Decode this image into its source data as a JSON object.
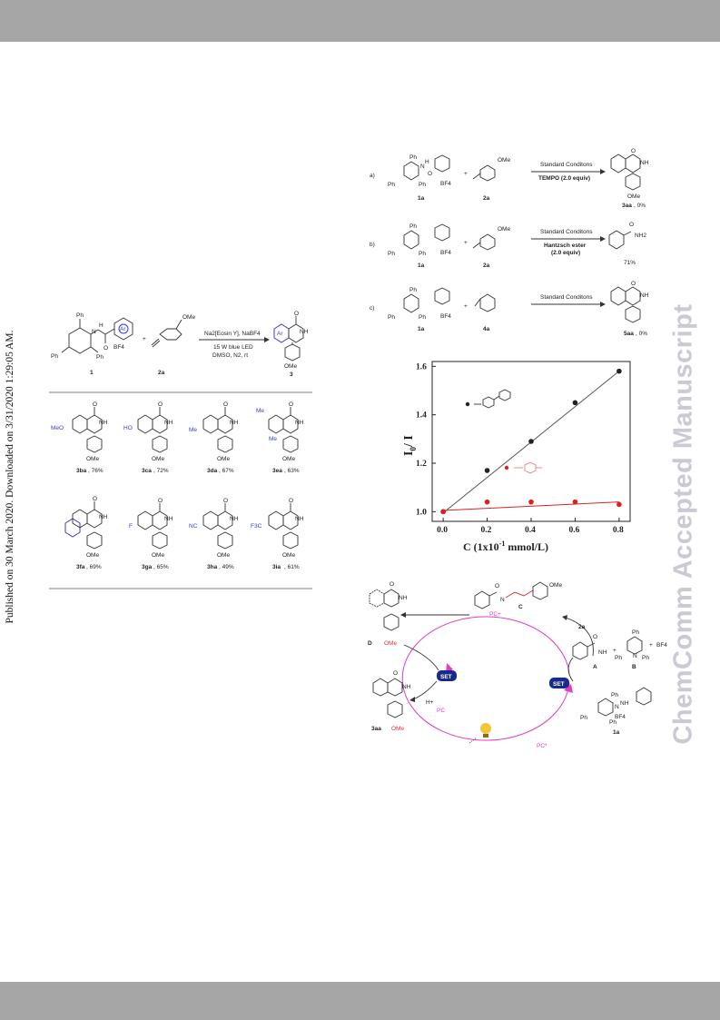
{
  "margin_note": "Published on 30 March 2020. Downloaded on 3/31/2020 1:29:05 AM.",
  "watermark": "ChemComm Accepted Manuscript",
  "scheme_left": {
    "conditions": [
      "Na2[Eosin Y], NaBF4",
      "15 W blue LED",
      "DMSO, N2, rt"
    ],
    "compound_labels": [
      "1",
      "2a",
      "3"
    ],
    "substituent_labels": [
      "Ph",
      "Ph",
      "Ph",
      "BF4",
      "Ar",
      "Ar",
      "OMe",
      "OMe",
      "N",
      "H",
      "O",
      "NH"
    ],
    "products": [
      {
        "label": "3ba",
        "yield": ", 76%",
        "substituent": "MeO"
      },
      {
        "label": "3ca",
        "yield": ", 72%",
        "substituent": "HO"
      },
      {
        "label": "3da",
        "yield": ", 67%",
        "substituent": "Me"
      },
      {
        "label": "3ea",
        "yield": ", 63%",
        "substituent": "Me"
      },
      {
        "label": "3fa",
        "yield": ", 69%",
        "substituent": ""
      },
      {
        "label": "3ga",
        "yield": ", 65%",
        "substituent": "F"
      },
      {
        "label": "3ha",
        "yield": ", 49%",
        "substituent": "NC"
      },
      {
        "label": "3ia",
        "yield": ", 61%",
        "substituent": "F3C"
      }
    ],
    "extra_labels": [
      "Me",
      "OMe",
      "NH",
      "O"
    ]
  },
  "control_experiments": [
    {
      "tag": "a)",
      "above": "Standard Conditons",
      "below": "TEMPO (2.0 equiv)",
      "reagent_labels": [
        "1a",
        "2a"
      ],
      "product": "3aa",
      "product_yield": ", 0%",
      "product_sub": "OMe"
    },
    {
      "tag": "b)",
      "above": "Standard Conditons",
      "below": "Hantzsch ester",
      "below2": "(2.0 equiv)",
      "reagent_labels": [
        "1a",
        "2a"
      ],
      "product_yield": "71%",
      "product_sub": "NH2"
    },
    {
      "tag": "c)",
      "above": "Standard Conditons",
      "below": "",
      "reagent_labels": [
        "1a",
        "4a"
      ],
      "product": "5aa",
      "product_yield": ", 0%"
    }
  ],
  "chem_text": {
    "ph": "Ph",
    "bf4": "BF4",
    "ome": "OMe",
    "nh": "NH",
    "h": "H",
    "n": "N",
    "o": "O",
    "plus": "+"
  },
  "chart_data": {
    "type": "scatter",
    "xlabel": "C (1x10",
    "xlabel_sup": "-1",
    "xlabel_tail": " mmol/L)",
    "ylabel": "I",
    "ylabel_sub": "0",
    "ylabel_tail": "/ I",
    "xlim": [
      0.0,
      0.8
    ],
    "ylim": [
      0.96,
      1.62
    ],
    "x_ticks": [
      "0.0",
      "0.2",
      "0.4",
      "0.6",
      "0.8"
    ],
    "y_ticks": [
      "1.0",
      "1.2",
      "1.4",
      "1.6"
    ],
    "series": [
      {
        "color": "#222222",
        "x": [
          0.0,
          0.2,
          0.4,
          0.6,
          0.8
        ],
        "y": [
          1.0,
          1.17,
          1.29,
          1.45,
          1.58
        ],
        "fit": [
          [
            0.0,
            0.995
          ],
          [
            0.8,
            1.58
          ]
        ]
      },
      {
        "color": "#e02020",
        "x": [
          0.0,
          0.2,
          0.4,
          0.6,
          0.8
        ],
        "y": [
          1.0,
          1.04,
          1.04,
          1.04,
          1.03
        ],
        "fit": [
          [
            0.0,
            1.005
          ],
          [
            0.8,
            1.04
          ]
        ]
      }
    ]
  },
  "mechanism": {
    "labels": [
      "A",
      "B",
      "C",
      "D",
      "1a",
      "3aa",
      "2a"
    ],
    "cycle_labels": [
      "PC",
      "PC*",
      "PC+",
      "H+",
      "SET",
      "SET"
    ],
    "extra": [
      "NH",
      "Ph",
      "Ph",
      "Ph",
      "BF4",
      "OMe",
      "O",
      "N",
      "H",
      "Ph",
      "+"
    ]
  },
  "colors": {
    "blue": "#3a3ad0",
    "red": "#e03030",
    "magenta": "#e040c0",
    "set_badge": "#1a2a8a",
    "bulb": "#f2c63a"
  }
}
